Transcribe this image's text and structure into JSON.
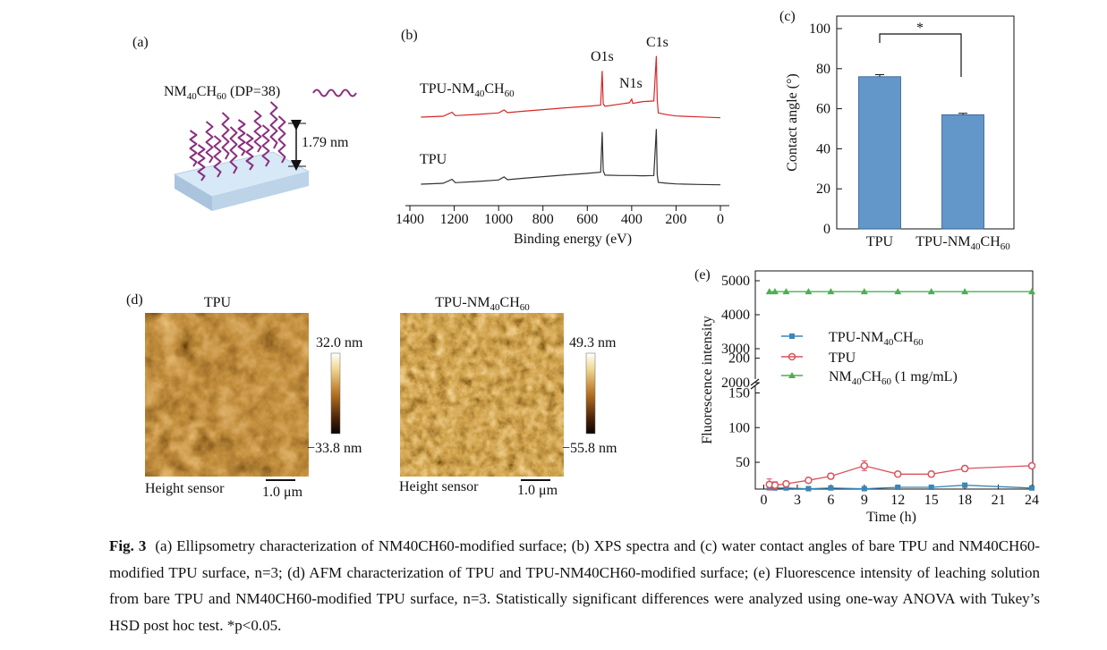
{
  "panels": {
    "a": {
      "tag": "(a)",
      "polymer_label": "NM40CH60 (DP=38)",
      "thickness_label": "1.79 nm",
      "colors": {
        "chain": "#8a2f7e",
        "substrate": "#cfe4f5"
      }
    },
    "b": {
      "tag": "(b)"
    },
    "c": {
      "tag": "(c)",
      "sig_mark": "*"
    },
    "d": {
      "tag": "(d)",
      "images": [
        {
          "title": "TPU",
          "sensor_label": "Height sensor",
          "scale_label": "1.0 μm",
          "colorbar_max": "32.0 nm",
          "colorbar_min": "−33.8 nm"
        },
        {
          "title": "TPU-NM40CH60",
          "sensor_label": "Height sensor",
          "scale_label": "1.0 μm",
          "colorbar_max": "49.3 nm",
          "colorbar_min": "−55.8 nm"
        }
      ]
    },
    "e": {
      "tag": "(e)"
    }
  },
  "chart_data": [
    {
      "id": "b",
      "type": "line",
      "xlabel": "Binding energy (eV)",
      "xlim": [
        1400,
        0
      ],
      "x_reversed": true,
      "x_ticks": [
        "1400",
        "1200",
        "1000",
        "800",
        "600",
        "400",
        "200",
        "0"
      ],
      "series": [
        {
          "name": "TPU-NM40CH60",
          "color": "#d62728",
          "x": [
            1350,
            1250,
            1210,
            1195,
            1100,
            1000,
            975,
            960,
            900,
            800,
            700,
            600,
            540,
            533,
            528,
            520,
            450,
            410,
            400,
            395,
            350,
            300,
            289,
            285,
            280,
            240,
            200,
            100,
            0
          ],
          "y": [
            0.3,
            0.45,
            1.1,
            0.55,
            0.75,
            1.0,
            1.5,
            1.05,
            1.25,
            1.55,
            1.85,
            2.1,
            2.3,
            8.0,
            2.5,
            2.1,
            2.5,
            2.7,
            3.3,
            2.6,
            2.9,
            3.0,
            10.5,
            3.2,
            1.0,
            0.7,
            0.5,
            0.35,
            0.2
          ]
        },
        {
          "name": "TPU",
          "color": "#333333",
          "x": [
            1350,
            1250,
            1210,
            1195,
            1100,
            1000,
            975,
            960,
            900,
            800,
            700,
            600,
            540,
            533,
            528,
            520,
            450,
            400,
            350,
            300,
            289,
            285,
            280,
            240,
            200,
            100,
            0
          ],
          "y": [
            0.3,
            0.45,
            1.1,
            0.55,
            0.75,
            1.0,
            1.5,
            1.05,
            1.25,
            1.55,
            1.85,
            2.1,
            2.3,
            9.0,
            2.5,
            1.8,
            1.75,
            1.75,
            1.7,
            1.75,
            9.5,
            1.9,
            0.6,
            0.45,
            0.35,
            0.25,
            0.2
          ]
        }
      ],
      "annotations": [
        "O1s",
        "N1s",
        "C1s"
      ]
    },
    {
      "id": "c",
      "type": "bar",
      "categories": [
        "TPU",
        "TPU-NM40CH60"
      ],
      "values": [
        76.0,
        57.0
      ],
      "errors": [
        1.0,
        0.7
      ],
      "ylabel": "Contact angle (°)",
      "ylim": [
        0,
        100
      ],
      "y_ticks": [
        "0",
        "20",
        "40",
        "60",
        "80",
        "100"
      ],
      "bar_color": "#6396c9",
      "significance": "*"
    },
    {
      "id": "e",
      "type": "line",
      "xlabel": "Time (h)",
      "ylabel": "Fluorescence intensity",
      "xlim": [
        0,
        25
      ],
      "x_ticks": [
        "0",
        "3",
        "6",
        "9",
        "12",
        "15",
        "18",
        "21",
        "24"
      ],
      "y_ticks_lower": [
        "50",
        "100",
        "150",
        "200"
      ],
      "y_ticks_upper": [
        "2000",
        "3000",
        "4000",
        "5000"
      ],
      "broken_axis": [
        200,
        2000
      ],
      "series": [
        {
          "name": "TPU-NM40CH60",
          "color": "#3a86b8",
          "marker": "square",
          "x": [
            0.5,
            1,
            2,
            4,
            6,
            9,
            12,
            15,
            18,
            24
          ],
          "y": [
            14,
            13,
            13,
            12,
            13,
            12,
            14,
            14,
            17,
            13
          ],
          "err": [
            3,
            2,
            2,
            2,
            2,
            2,
            2,
            2,
            3,
            2
          ]
        },
        {
          "name": "TPU",
          "color": "#d9535c",
          "marker": "circle",
          "x": [
            0.5,
            1,
            2,
            4,
            6,
            9,
            12,
            15,
            18,
            24
          ],
          "y": [
            18,
            17,
            19,
            24,
            30,
            45,
            33,
            33,
            41,
            45
          ],
          "err": [
            8,
            5,
            3,
            3,
            4,
            7,
            3,
            4,
            4,
            3
          ]
        },
        {
          "name": "NM40CH60 (1 mg/mL)",
          "color": "#4caf50",
          "marker": "triangle",
          "x": [
            0.5,
            1,
            2,
            4,
            6,
            9,
            12,
            15,
            18,
            24
          ],
          "y": [
            4680,
            4680,
            4680,
            4680,
            4680,
            4680,
            4680,
            4680,
            4680,
            4680
          ],
          "err": [
            0,
            0,
            0,
            0,
            0,
            0,
            0,
            0,
            0,
            0
          ]
        }
      ]
    }
  ],
  "caption": {
    "fig_label": "Fig. 3",
    "text": "(a) Ellipsometry characterization of NM40CH60-modified surface; (b) XPS spectra and (c) water contact angles of bare TPU and NM40CH60-modified TPU surface, n=3; (d) AFM characterization of TPU and TPU-NM40CH60-modified surface; (e) Fluorescence intensity of leaching solution from bare TPU and NM40CH60-modified TPU surface, n=3. Statistically significant differences were analyzed using one-way ANOVA with Tukey’s HSD post hoc test. *p<0.05."
  }
}
